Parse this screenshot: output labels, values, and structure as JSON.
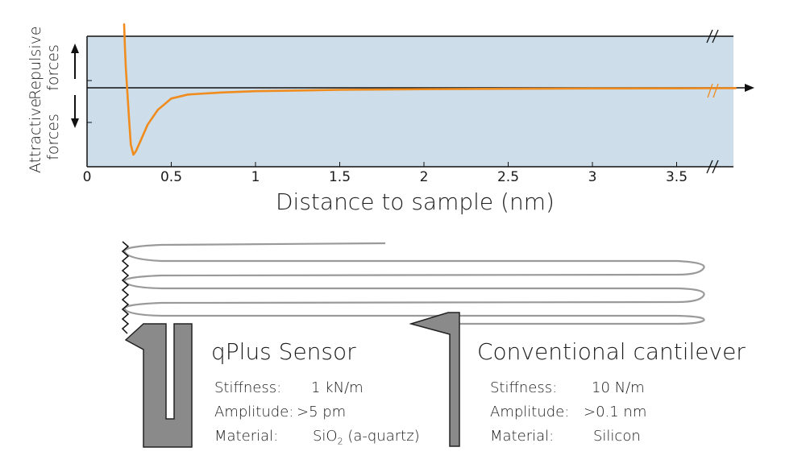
{
  "chart_data": {
    "type": "line",
    "title": "",
    "xlabel": "Distance to sample (nm)",
    "ylabel_top": "Repulsive forces",
    "ylabel_bottom": "Attractive forces",
    "x_ticks": [
      "0",
      "0.5",
      "1",
      "1.5",
      "2",
      "2.5",
      "3",
      "3.5"
    ],
    "xlim": [
      0,
      3.85
    ],
    "axis_break": true,
    "background_color": "#cddeea",
    "line_color": "#f08c1e",
    "series": [
      {
        "points": [
          [
            0.22,
            0.95
          ],
          [
            0.225,
            0.6
          ],
          [
            0.23,
            0.3
          ],
          [
            0.24,
            -0.1
          ],
          [
            0.25,
            -0.5
          ],
          [
            0.26,
            -0.85
          ],
          [
            0.275,
            -1.0
          ],
          [
            0.29,
            -0.95
          ],
          [
            0.32,
            -0.78
          ],
          [
            0.36,
            -0.55
          ],
          [
            0.42,
            -0.33
          ],
          [
            0.5,
            -0.16
          ],
          [
            0.6,
            -0.1
          ],
          [
            0.8,
            -0.07
          ],
          [
            1.0,
            -0.05
          ],
          [
            1.5,
            -0.03
          ],
          [
            2.0,
            -0.02
          ],
          [
            2.5,
            -0.015
          ],
          [
            3.0,
            -0.01
          ],
          [
            3.5,
            -0.008
          ],
          [
            3.85,
            -0.005
          ]
        ]
      }
    ]
  },
  "sensors": {
    "qplus": {
      "title": "qPlus Sensor",
      "stiffness_label": "Stiffness:",
      "stiffness_value": "1 kN/m",
      "amplitude_label": "Amplitude:",
      "amplitude_value": ">5 pm",
      "material_label": "Material:",
      "material_value_pre": "SiO",
      "material_sub": "2",
      "material_value_post": " (a-quartz)"
    },
    "conventional": {
      "title": "Conventional cantilever",
      "stiffness_label": "Stiffness:",
      "stiffness_value": "10 N/m",
      "amplitude_label": "Amplitude:",
      "amplitude_value": ">0.1 nm",
      "material_label": "Material:",
      "material_value": "Silicon"
    }
  },
  "colors": {
    "sensor_fill": "#8a8a8a",
    "oscillation_line": "#9a9a9a"
  }
}
